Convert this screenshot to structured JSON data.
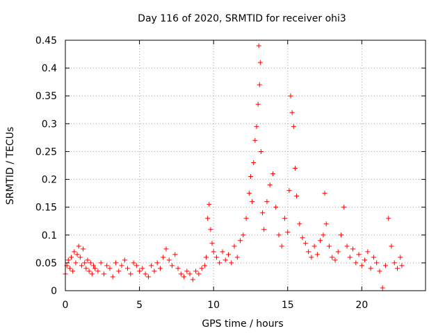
{
  "chart_data": {
    "type": "scatter",
    "title": "Day 116 of 2020, SRMTID for receiver ohi3",
    "xlabel": "GPS time / hours",
    "ylabel": "SRMTID / TECUs",
    "xlim": [
      0,
      24.3
    ],
    "ylim": [
      0,
      0.45
    ],
    "grid": true,
    "marker": "+",
    "color": "#ff0000",
    "x_ticks": [
      0,
      5,
      10,
      15,
      20
    ],
    "x_tick_labels": [
      "0",
      "5",
      "10",
      "15",
      "20"
    ],
    "y_ticks": [
      0,
      0.05,
      0.1,
      0.15,
      0.2,
      0.25,
      0.3,
      0.35,
      0.4,
      0.45
    ],
    "y_tick_labels": [
      "0",
      "0.05",
      "0.1",
      "0.15",
      "0.2",
      "0.25",
      "0.3",
      "0.35",
      "0.4",
      "0.45"
    ],
    "series": [
      {
        "name": "SRMTID",
        "points": [
          [
            0.0,
            0.03
          ],
          [
            0.1,
            0.045
          ],
          [
            0.2,
            0.055
          ],
          [
            0.3,
            0.04
          ],
          [
            0.4,
            0.06
          ],
          [
            0.5,
            0.035
          ],
          [
            0.6,
            0.07
          ],
          [
            0.7,
            0.05
          ],
          [
            0.8,
            0.065
          ],
          [
            0.9,
            0.08
          ],
          [
            1.0,
            0.06
          ],
          [
            1.1,
            0.045
          ],
          [
            1.2,
            0.075
          ],
          [
            1.3,
            0.05
          ],
          [
            1.4,
            0.04
          ],
          [
            1.5,
            0.055
          ],
          [
            1.6,
            0.035
          ],
          [
            1.7,
            0.05
          ],
          [
            1.8,
            0.03
          ],
          [
            1.9,
            0.045
          ],
          [
            2.0,
            0.04
          ],
          [
            2.2,
            0.035
          ],
          [
            2.4,
            0.05
          ],
          [
            2.6,
            0.03
          ],
          [
            2.8,
            0.045
          ],
          [
            3.0,
            0.04
          ],
          [
            3.2,
            0.025
          ],
          [
            3.4,
            0.05
          ],
          [
            3.6,
            0.035
          ],
          [
            3.8,
            0.045
          ],
          [
            4.0,
            0.055
          ],
          [
            4.2,
            0.04
          ],
          [
            4.4,
            0.03
          ],
          [
            4.6,
            0.05
          ],
          [
            4.8,
            0.045
          ],
          [
            5.0,
            0.035
          ],
          [
            5.2,
            0.04
          ],
          [
            5.4,
            0.03
          ],
          [
            5.6,
            0.025
          ],
          [
            5.8,
            0.045
          ],
          [
            6.0,
            0.035
          ],
          [
            6.2,
            0.05
          ],
          [
            6.4,
            0.04
          ],
          [
            6.6,
            0.06
          ],
          [
            6.8,
            0.075
          ],
          [
            7.0,
            0.055
          ],
          [
            7.2,
            0.045
          ],
          [
            7.4,
            0.065
          ],
          [
            7.6,
            0.04
          ],
          [
            7.8,
            0.03
          ],
          [
            8.0,
            0.025
          ],
          [
            8.2,
            0.035
          ],
          [
            8.4,
            0.03
          ],
          [
            8.6,
            0.02
          ],
          [
            8.8,
            0.035
          ],
          [
            9.0,
            0.03
          ],
          [
            9.2,
            0.04
          ],
          [
            9.4,
            0.045
          ],
          [
            9.5,
            0.06
          ],
          [
            9.6,
            0.13
          ],
          [
            9.7,
            0.155
          ],
          [
            9.8,
            0.11
          ],
          [
            9.9,
            0.085
          ],
          [
            10.0,
            0.07
          ],
          [
            10.2,
            0.06
          ],
          [
            10.4,
            0.05
          ],
          [
            10.6,
            0.07
          ],
          [
            10.8,
            0.055
          ],
          [
            11.0,
            0.065
          ],
          [
            11.2,
            0.05
          ],
          [
            11.4,
            0.08
          ],
          [
            11.6,
            0.06
          ],
          [
            11.8,
            0.09
          ],
          [
            12.0,
            0.1
          ],
          [
            12.2,
            0.13
          ],
          [
            12.4,
            0.175
          ],
          [
            12.5,
            0.205
          ],
          [
            12.6,
            0.16
          ],
          [
            12.7,
            0.23
          ],
          [
            12.8,
            0.27
          ],
          [
            12.9,
            0.295
          ],
          [
            13.0,
            0.335
          ],
          [
            13.05,
            0.44
          ],
          [
            13.1,
            0.37
          ],
          [
            13.15,
            0.41
          ],
          [
            13.2,
            0.25
          ],
          [
            13.3,
            0.14
          ],
          [
            13.4,
            0.11
          ],
          [
            13.6,
            0.16
          ],
          [
            13.8,
            0.19
          ],
          [
            14.0,
            0.21
          ],
          [
            14.2,
            0.15
          ],
          [
            14.4,
            0.1
          ],
          [
            14.6,
            0.08
          ],
          [
            14.8,
            0.13
          ],
          [
            15.0,
            0.105
          ],
          [
            15.1,
            0.18
          ],
          [
            15.2,
            0.35
          ],
          [
            15.3,
            0.32
          ],
          [
            15.4,
            0.295
          ],
          [
            15.5,
            0.22
          ],
          [
            15.6,
            0.17
          ],
          [
            15.8,
            0.12
          ],
          [
            16.0,
            0.095
          ],
          [
            16.2,
            0.085
          ],
          [
            16.4,
            0.07
          ],
          [
            16.6,
            0.06
          ],
          [
            16.8,
            0.08
          ],
          [
            17.0,
            0.065
          ],
          [
            17.2,
            0.09
          ],
          [
            17.4,
            0.1
          ],
          [
            17.5,
            0.175
          ],
          [
            17.6,
            0.12
          ],
          [
            17.8,
            0.08
          ],
          [
            18.0,
            0.06
          ],
          [
            18.2,
            0.055
          ],
          [
            18.4,
            0.07
          ],
          [
            18.6,
            0.1
          ],
          [
            18.8,
            0.15
          ],
          [
            19.0,
            0.08
          ],
          [
            19.2,
            0.06
          ],
          [
            19.4,
            0.075
          ],
          [
            19.6,
            0.05
          ],
          [
            19.8,
            0.065
          ],
          [
            20.0,
            0.045
          ],
          [
            20.2,
            0.055
          ],
          [
            20.4,
            0.07
          ],
          [
            20.6,
            0.04
          ],
          [
            20.8,
            0.06
          ],
          [
            21.0,
            0.05
          ],
          [
            21.2,
            0.035
          ],
          [
            21.4,
            0.005
          ],
          [
            21.6,
            0.045
          ],
          [
            21.8,
            0.13
          ],
          [
            22.0,
            0.08
          ],
          [
            22.2,
            0.05
          ],
          [
            22.4,
            0.04
          ],
          [
            22.6,
            0.06
          ],
          [
            22.7,
            0.045
          ]
        ]
      }
    ]
  }
}
